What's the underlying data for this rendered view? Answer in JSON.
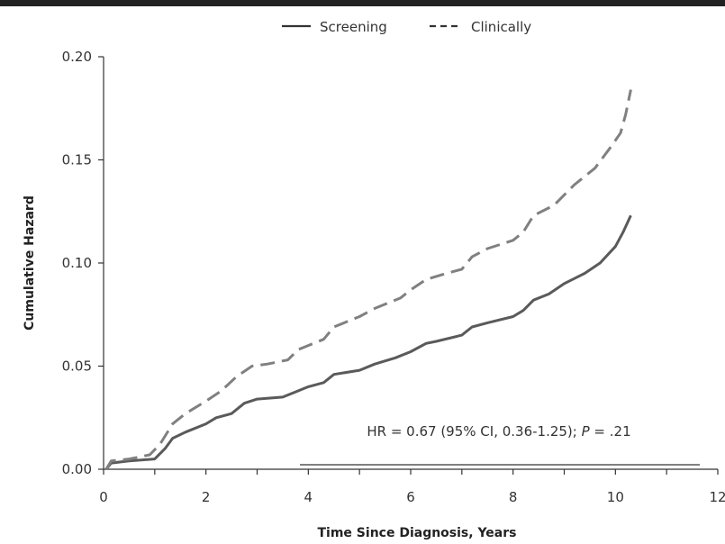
{
  "chart_data": {
    "type": "line",
    "title": "",
    "xlabel": "Time Since Diagnosis, Years",
    "ylabel": "Cumulative Hazard",
    "xlim": [
      0,
      12
    ],
    "ylim": [
      0,
      0.2
    ],
    "xticks": [
      0,
      1,
      2,
      3,
      4,
      5,
      6,
      7,
      8,
      9,
      10,
      11,
      12
    ],
    "xtick_labels": [
      "0",
      "2",
      "4",
      "6",
      "8",
      "10",
      "12"
    ],
    "xtick_label_values": [
      0,
      2,
      4,
      6,
      8,
      10,
      12
    ],
    "yticks": [
      0,
      0.05,
      0.1,
      0.15,
      0.2
    ],
    "ytick_labels": [
      "0.00",
      "0.05",
      "0.10",
      "0.15",
      "0.20"
    ],
    "grid": false,
    "legend_position": "top",
    "series": [
      {
        "name": "Screening",
        "style": "solid",
        "color": "#5a5a5a",
        "points": [
          [
            0.05,
            0.0
          ],
          [
            0.15,
            0.003
          ],
          [
            0.5,
            0.004
          ],
          [
            1.0,
            0.005
          ],
          [
            1.2,
            0.01
          ],
          [
            1.35,
            0.015
          ],
          [
            1.6,
            0.018
          ],
          [
            2.0,
            0.022
          ],
          [
            2.2,
            0.025
          ],
          [
            2.5,
            0.027
          ],
          [
            2.75,
            0.032
          ],
          [
            3.0,
            0.034
          ],
          [
            3.5,
            0.035
          ],
          [
            3.8,
            0.038
          ],
          [
            4.0,
            0.04
          ],
          [
            4.3,
            0.042
          ],
          [
            4.5,
            0.046
          ],
          [
            5.0,
            0.048
          ],
          [
            5.3,
            0.051
          ],
          [
            5.7,
            0.054
          ],
          [
            6.0,
            0.057
          ],
          [
            6.3,
            0.061
          ],
          [
            6.5,
            0.062
          ],
          [
            7.0,
            0.065
          ],
          [
            7.2,
            0.069
          ],
          [
            7.5,
            0.071
          ],
          [
            8.0,
            0.074
          ],
          [
            8.2,
            0.077
          ],
          [
            8.4,
            0.082
          ],
          [
            8.7,
            0.085
          ],
          [
            9.0,
            0.09
          ],
          [
            9.4,
            0.095
          ],
          [
            9.7,
            0.1
          ],
          [
            10.0,
            0.108
          ],
          [
            10.15,
            0.115
          ],
          [
            10.3,
            0.123
          ]
        ]
      },
      {
        "name": "Clinically",
        "style": "dashed",
        "color": "#808080",
        "points": [
          [
            0.05,
            0.0
          ],
          [
            0.15,
            0.004
          ],
          [
            0.5,
            0.005
          ],
          [
            0.9,
            0.007
          ],
          [
            1.1,
            0.012
          ],
          [
            1.35,
            0.022
          ],
          [
            1.6,
            0.027
          ],
          [
            2.0,
            0.033
          ],
          [
            2.3,
            0.038
          ],
          [
            2.6,
            0.045
          ],
          [
            2.9,
            0.05
          ],
          [
            3.2,
            0.051
          ],
          [
            3.6,
            0.053
          ],
          [
            3.8,
            0.058
          ],
          [
            4.0,
            0.06
          ],
          [
            4.3,
            0.063
          ],
          [
            4.5,
            0.069
          ],
          [
            5.0,
            0.074
          ],
          [
            5.3,
            0.078
          ],
          [
            5.8,
            0.083
          ],
          [
            6.0,
            0.087
          ],
          [
            6.3,
            0.092
          ],
          [
            6.7,
            0.095
          ],
          [
            7.0,
            0.097
          ],
          [
            7.2,
            0.103
          ],
          [
            7.5,
            0.107
          ],
          [
            8.0,
            0.111
          ],
          [
            8.2,
            0.115
          ],
          [
            8.4,
            0.123
          ],
          [
            8.8,
            0.128
          ],
          [
            9.2,
            0.138
          ],
          [
            9.6,
            0.146
          ],
          [
            9.9,
            0.156
          ],
          [
            10.1,
            0.163
          ],
          [
            10.2,
            0.172
          ],
          [
            10.3,
            0.184
          ]
        ]
      }
    ],
    "annotation": {
      "prefix": "HR = 0.67 (95% CI, 0.36-1.25); ",
      "p_symbol": "P",
      "suffix": " = .21"
    }
  }
}
